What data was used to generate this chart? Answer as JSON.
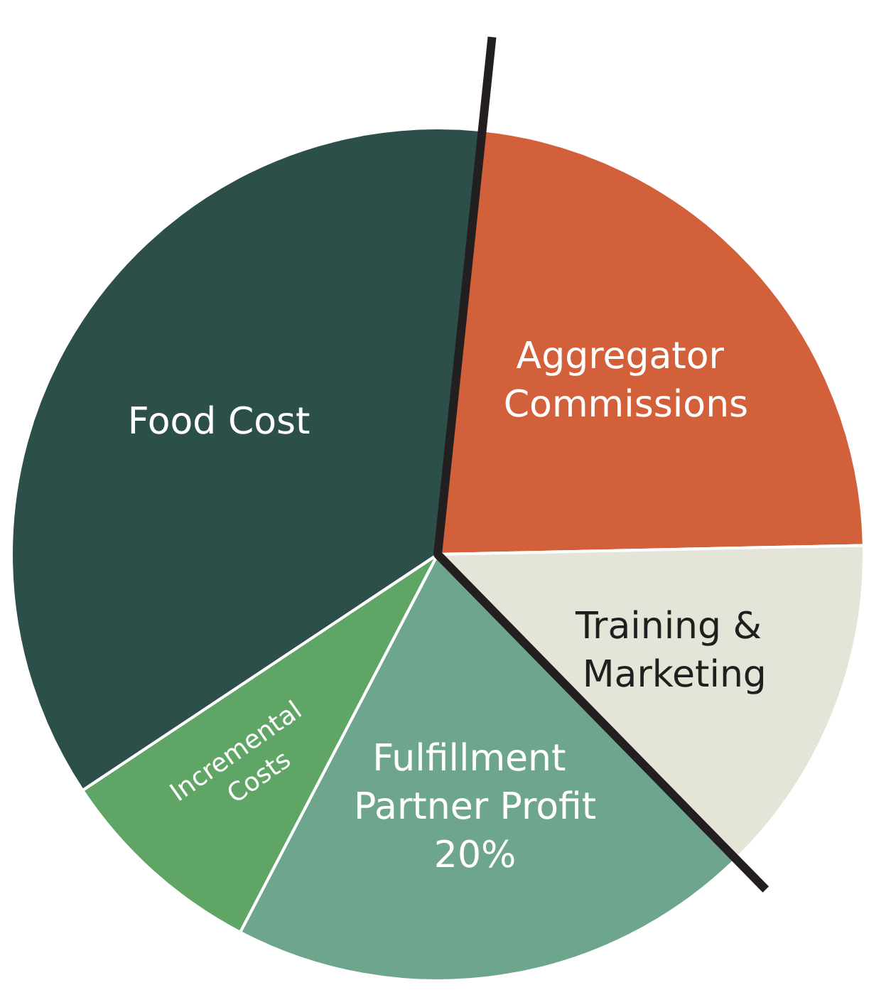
{
  "chart_data": {
    "type": "pie",
    "categories": [
      "Aggregator Commissions",
      "Training & Marketing",
      "Fulfillment Partner Profit",
      "Incremental Costs",
      "Food Cost"
    ],
    "values": [
      23,
      13,
      20,
      8,
      36
    ],
    "value_labels": [
      null,
      null,
      "20%",
      null,
      null
    ],
    "colors": [
      "#d2603a",
      "#e4e4d8",
      "#6da68c",
      "#5ea566",
      "#2d4f4a"
    ]
  }
}
